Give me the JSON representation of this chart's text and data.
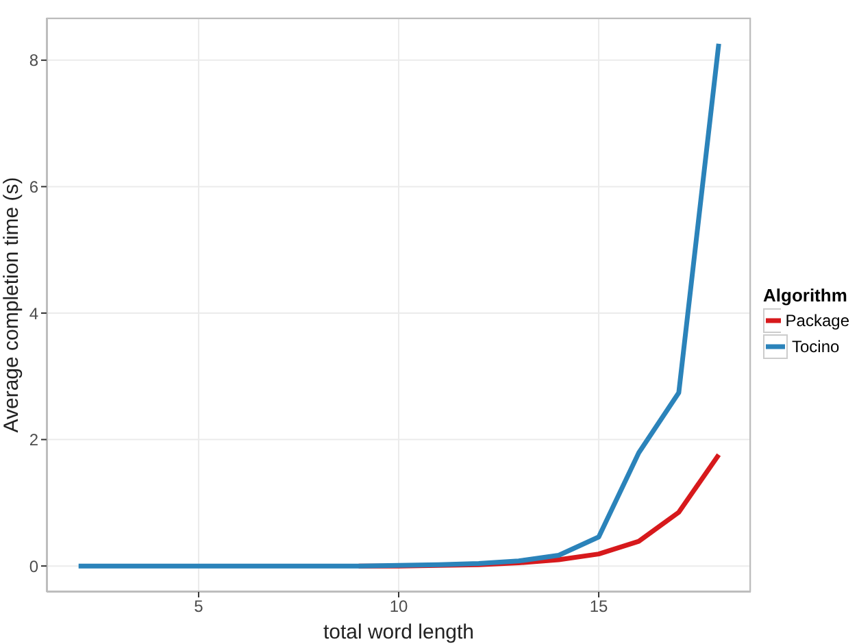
{
  "chart_data": {
    "type": "line",
    "xlabel": "total word length",
    "ylabel": "Average completion time (s)",
    "legend_title": "Algorithm",
    "x": [
      2,
      3,
      4,
      5,
      6,
      7,
      8,
      9,
      10,
      11,
      12,
      13,
      14,
      15,
      16,
      17,
      18
    ],
    "series": [
      {
        "name": "Package",
        "color": "#d7191c",
        "values": [
          null,
          null,
          null,
          null,
          null,
          null,
          null,
          0,
          0,
          0.01,
          0.02,
          0.05,
          0.1,
          0.19,
          0.39,
          0.85,
          1.76
        ]
      },
      {
        "name": "Tocino",
        "color": "#2b83ba",
        "values": [
          0,
          0,
          0,
          0,
          0,
          0,
          0,
          0,
          0.01,
          0.02,
          0.04,
          0.08,
          0.17,
          0.46,
          1.79,
          2.74,
          8.26
        ]
      }
    ],
    "xlim": [
      1.2,
      18.8
    ],
    "ylim": [
      -0.41,
      8.67
    ],
    "xticks": [
      5,
      10,
      15
    ],
    "yticks": [
      0,
      2,
      4,
      6,
      8
    ],
    "grid": true,
    "legend": "right",
    "line_style": "solid"
  }
}
